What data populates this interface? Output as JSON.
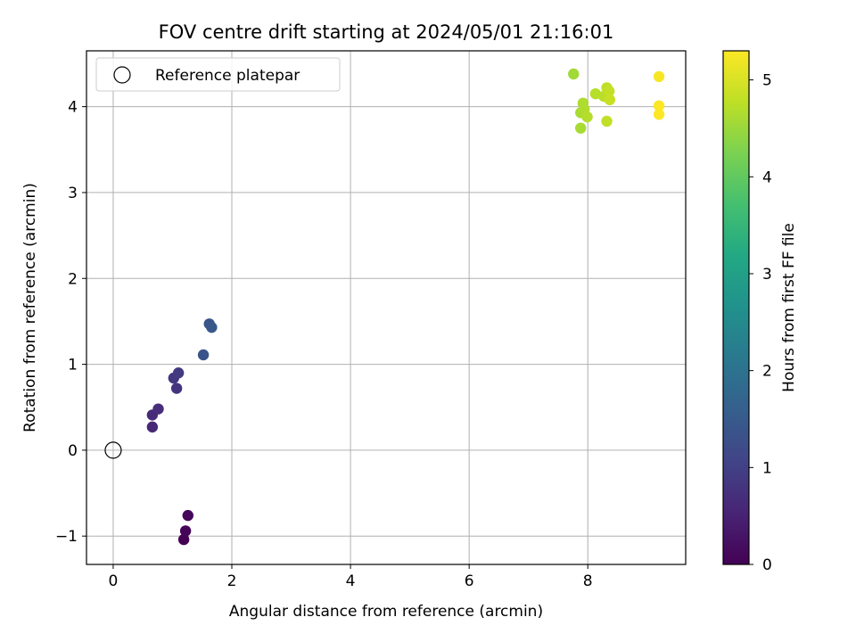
{
  "chart_data": {
    "type": "scatter",
    "title": "FOV centre drift starting at 2024/05/01 21:16:01",
    "xlabel": "Angular distance from reference (arcmin)",
    "ylabel": "Rotation from reference (arcmin)",
    "xlim": [
      -0.45,
      9.65
    ],
    "ylim": [
      -1.33,
      4.65
    ],
    "xticks": [
      0,
      2,
      4,
      6,
      8
    ],
    "yticks": [
      -1,
      0,
      1,
      2,
      3,
      4
    ],
    "grid": true,
    "legend": {
      "placement": "top-left",
      "entries": [
        "Reference platepar"
      ]
    },
    "reference_point": {
      "x": 0,
      "y": 0
    },
    "colorbar": {
      "label": "Hours from first FF file",
      "colormap": "viridis",
      "range": [
        0,
        5.3
      ],
      "ticks": [
        0,
        1,
        2,
        3,
        4,
        5
      ]
    },
    "points": [
      {
        "x": 1.19,
        "y": -1.04,
        "c": 0.0
      },
      {
        "x": 1.22,
        "y": -0.94,
        "c": 0.05
      },
      {
        "x": 1.26,
        "y": -0.76,
        "c": 0.1
      },
      {
        "x": 0.66,
        "y": 0.27,
        "c": 0.6
      },
      {
        "x": 0.66,
        "y": 0.41,
        "c": 0.65
      },
      {
        "x": 0.76,
        "y": 0.48,
        "c": 0.7
      },
      {
        "x": 1.07,
        "y": 0.72,
        "c": 0.8
      },
      {
        "x": 1.02,
        "y": 0.84,
        "c": 0.85
      },
      {
        "x": 1.1,
        "y": 0.9,
        "c": 0.9
      },
      {
        "x": 1.52,
        "y": 1.11,
        "c": 1.35
      },
      {
        "x": 1.62,
        "y": 1.47,
        "c": 1.4
      },
      {
        "x": 1.66,
        "y": 1.43,
        "c": 1.45
      },
      {
        "x": 7.76,
        "y": 4.38,
        "c": 4.55
      },
      {
        "x": 7.88,
        "y": 3.75,
        "c": 4.6
      },
      {
        "x": 7.88,
        "y": 3.93,
        "c": 4.62
      },
      {
        "x": 7.92,
        "y": 4.04,
        "c": 4.65
      },
      {
        "x": 7.94,
        "y": 3.97,
        "c": 4.67
      },
      {
        "x": 7.99,
        "y": 3.88,
        "c": 4.7
      },
      {
        "x": 8.13,
        "y": 4.15,
        "c": 4.72
      },
      {
        "x": 8.27,
        "y": 4.12,
        "c": 4.75
      },
      {
        "x": 8.32,
        "y": 4.22,
        "c": 4.78
      },
      {
        "x": 8.32,
        "y": 3.83,
        "c": 4.8
      },
      {
        "x": 8.36,
        "y": 4.18,
        "c": 4.82
      },
      {
        "x": 8.37,
        "y": 4.08,
        "c": 4.85
      },
      {
        "x": 9.2,
        "y": 4.35,
        "c": 5.25
      },
      {
        "x": 9.2,
        "y": 4.01,
        "c": 5.28
      },
      {
        "x": 9.2,
        "y": 3.91,
        "c": 5.3
      }
    ]
  }
}
